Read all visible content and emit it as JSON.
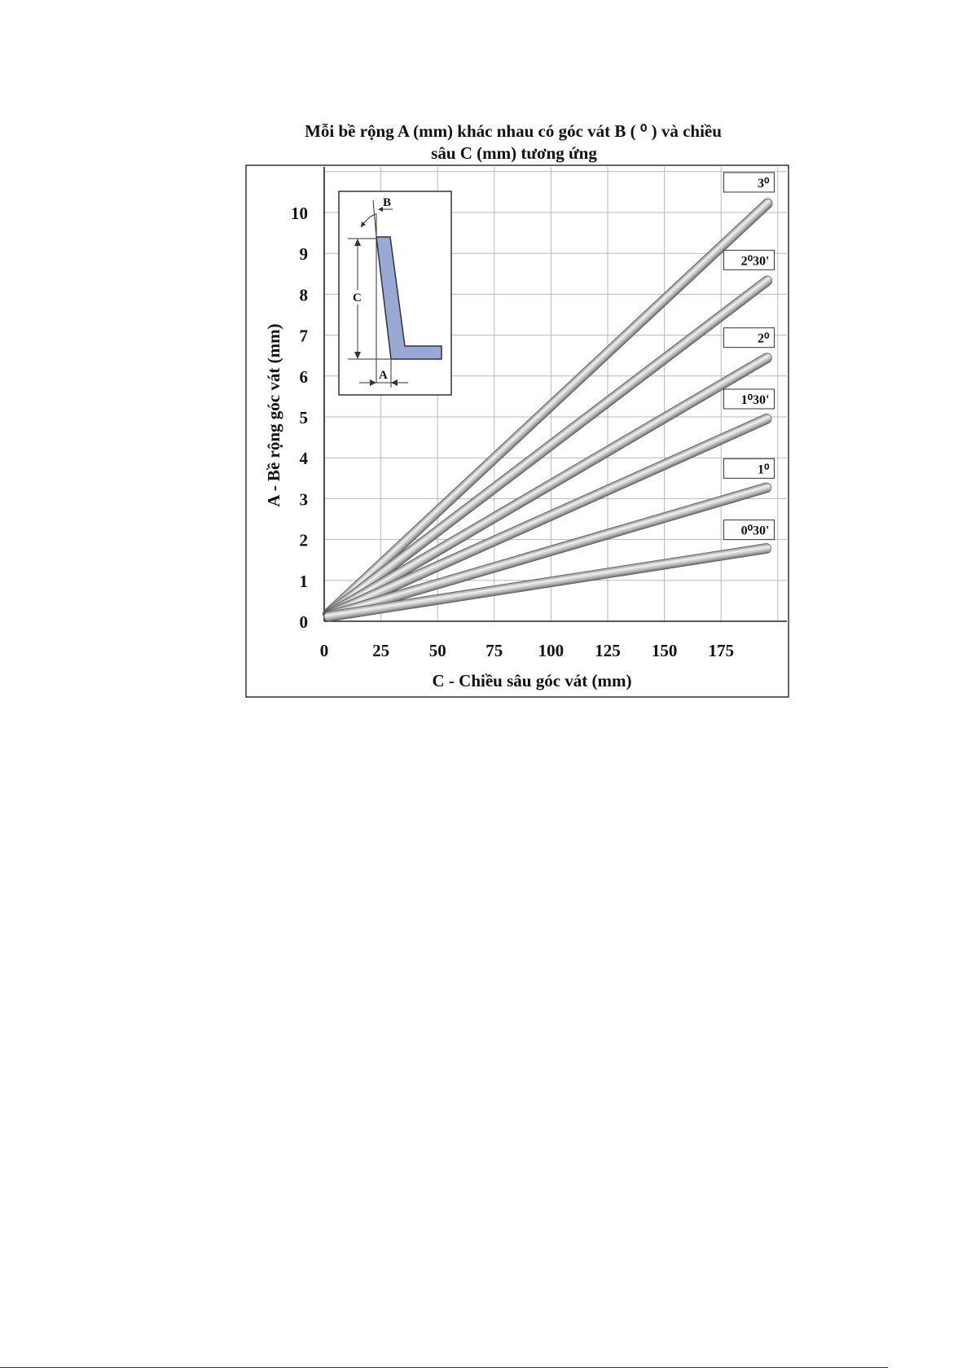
{
  "chart_data": {
    "type": "line",
    "title_line1": "Mỗi bề rộng A (mm) khác nhau có góc vát B ( ⁰ ) và chiều",
    "title_line2": "sâu C (mm) tương ứng",
    "xlabel": "C - Chiều sâu góc vát (mm)",
    "ylabel": "A - Bề rộng góc vát (mm)",
    "xlim": [
      0,
      200
    ],
    "ylim": [
      0,
      11
    ],
    "x_ticks": [
      "0",
      "25",
      "50",
      "75",
      "100",
      "125",
      "150",
      "175"
    ],
    "y_ticks": [
      "0",
      "1",
      "2",
      "3",
      "4",
      "5",
      "6",
      "7",
      "8",
      "9",
      "10"
    ],
    "grid": true,
    "series": [
      {
        "name": "3⁰",
        "x": [
          0,
          197
        ],
        "y": [
          0.1,
          10.3
        ]
      },
      {
        "name": "2⁰30'",
        "x": [
          0,
          197
        ],
        "y": [
          0.1,
          8.4
        ]
      },
      {
        "name": "2⁰",
        "x": [
          0,
          197
        ],
        "y": [
          0.1,
          6.5
        ]
      },
      {
        "name": "1⁰30'",
        "x": [
          0,
          197
        ],
        "y": [
          0.1,
          5.0
        ]
      },
      {
        "name": "1⁰",
        "x": [
          0,
          197
        ],
        "y": [
          0.1,
          3.3
        ]
      },
      {
        "name": "0⁰30'",
        "x": [
          0,
          197
        ],
        "y": [
          0.1,
          1.8
        ]
      }
    ]
  },
  "inset": {
    "label_b": "B",
    "label_c": "C",
    "label_a": "A",
    "profile_color": "#99a9d6"
  },
  "colors": {
    "grid": "#b8b8b8",
    "rod": "#a9a9a9",
    "axis": "#222222"
  }
}
